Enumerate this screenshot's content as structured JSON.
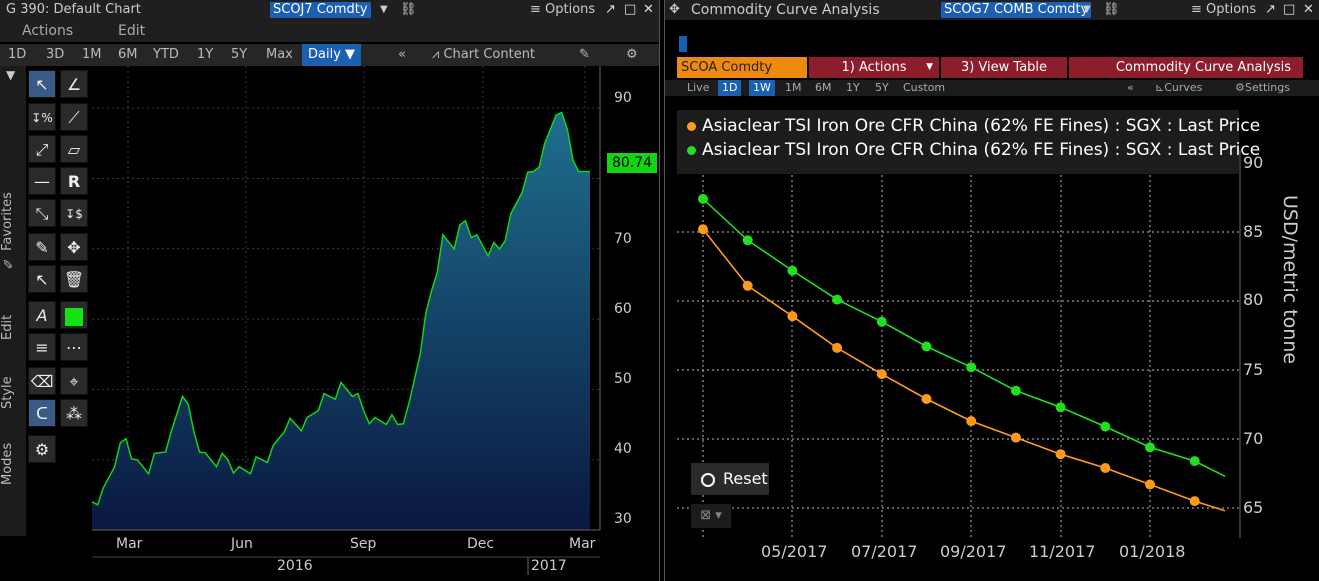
{
  "left": {
    "title": "G 390: Default Chart",
    "ticker": "SCOJ7 Comdty",
    "options_label": "Options",
    "menu": {
      "actions": "Actions",
      "edit": "Edit"
    },
    "ranges": [
      "1D",
      "3D",
      "1M",
      "6M",
      "YTD",
      "1Y",
      "5Y",
      "Max"
    ],
    "frequency": "Daily ▼",
    "collapse": "«",
    "chart_content": "Chart Content",
    "side_labels": {
      "favorites": "Favorites",
      "edit": "Edit",
      "style": "Style",
      "modes": "Modes"
    },
    "current_value": "80.74",
    "y_ticks": [
      "90",
      "80",
      "70",
      "60",
      "50",
      "40",
      "30"
    ],
    "x_months": [
      "Mar",
      "Jun",
      "Sep",
      "Dec",
      "Mar"
    ],
    "x_years": [
      "2016",
      "2017"
    ],
    "line_color": "#13d613"
  },
  "right": {
    "title": "Commodity Curve Analysis",
    "ticker": "SCOG7 COMB Comdty",
    "options_label": "Options",
    "tabs": {
      "security": "SCOA Comdty",
      "actions": "1) Actions",
      "view_table": "3) View Table",
      "analysis": "Commodity Curve Analysis"
    },
    "sub": {
      "live": "Live",
      "r1d": "1D",
      "r1w": "1W",
      "r1m": "1M",
      "r6m": "6M",
      "r1y": "1Y",
      "r5y": "5Y",
      "custom": "Custom",
      "curves": "Curves",
      "settings": "Settings"
    },
    "reset_label": "Reset",
    "y_axis_label": "USD/metric tonne",
    "y_ticks": [
      "90",
      "85",
      "80",
      "75",
      "70",
      "65"
    ],
    "x_ticks": [
      "05/2017",
      "07/2017",
      "09/2017",
      "11/2017",
      "01/2018"
    ],
    "orange_color": "#ff9a1a",
    "green_color": "#22dd22"
  },
  "chart_data": [
    {
      "type": "area",
      "title": "",
      "series": [
        {
          "name": "SCOJ7 Comdty",
          "values": [
            34,
            36,
            39,
            43,
            40,
            38,
            41,
            44,
            49,
            44,
            41,
            39,
            40,
            39,
            38,
            40,
            42,
            44,
            45,
            46,
            47,
            49,
            51,
            49,
            47,
            46,
            45,
            45,
            48,
            55,
            64,
            72,
            70,
            74,
            72,
            69,
            70,
            75,
            78,
            81,
            85,
            89,
            87,
            81,
            81
          ]
        }
      ],
      "x_range": [
        "2016-02",
        "2017-03"
      ],
      "ylim": [
        30,
        95
      ],
      "last_value": 80.74,
      "grid": true
    },
    {
      "type": "line",
      "title": "",
      "ylabel": "USD/metric tonne",
      "x": [
        "2017-03",
        "2017-04",
        "2017-05",
        "2017-06",
        "2017-07",
        "2017-08",
        "2017-09",
        "2017-10",
        "2017-11",
        "2017-12",
        "2018-01",
        "2018-02"
      ],
      "series": [
        {
          "name": "Asiaclear TSI Iron Ore CFR China (62% FE Fines) : SGX : Last Price",
          "color": "#ff9a1a",
          "values": [
            85.2,
            81.1,
            78.9,
            76.6,
            74.7,
            72.9,
            71.3,
            70.1,
            68.9,
            67.9,
            66.7,
            65.5
          ]
        },
        {
          "name": "Asiaclear TSI Iron Ore CFR China (62% FE Fines) : SGX : Last Price",
          "color": "#22dd22",
          "values": [
            87.4,
            84.4,
            82.2,
            80.1,
            78.5,
            76.7,
            75.2,
            73.5,
            72.3,
            70.9,
            69.4,
            68.4
          ]
        }
      ],
      "ylim": [
        64,
        93
      ],
      "legend": "top-left",
      "grid": true
    }
  ]
}
